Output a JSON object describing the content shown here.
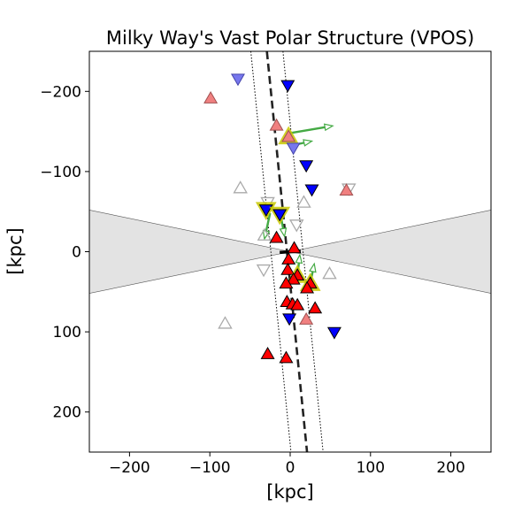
{
  "chart_data": {
    "type": "scatter",
    "title": "Milky Way's Vast Polar Structure (VPOS)",
    "xlabel": "[kpc]",
    "ylabel": "[kpc]",
    "xlim": [
      -250,
      250
    ],
    "ylim": [
      -250,
      250
    ],
    "y_inverted": true,
    "grid": false,
    "x_ticks": [
      -200,
      -100,
      0,
      100,
      200
    ],
    "y_ticks": [
      -200,
      -100,
      0,
      100,
      200
    ],
    "x_tick_labels": [
      "−200",
      "−100",
      "0",
      "100",
      "200"
    ],
    "y_tick_labels": [
      "−200",
      "−100",
      "0",
      "100",
      "200"
    ],
    "colors": {
      "co_orbiting": "#ff0000",
      "counter_orbiting": "#0000ff",
      "faded_co": "#f08080",
      "faded_counter": "#7777ee",
      "unconstrained": "#aaaaaa",
      "velocity_arrow": "#44aa44",
      "highlight_outline": "#c8c800",
      "obscured_region": "#e3e3e3",
      "plane_line": "#222222"
    },
    "zone_of_avoidance": {
      "left_edge_y": [
        -52,
        52
      ],
      "right_edge_y": [
        -52,
        52
      ],
      "center": [
        0,
        0
      ]
    },
    "vpos_plane": {
      "center_line": [
        [
          -29,
          -250
        ],
        [
          21,
          250
        ]
      ],
      "boundary_left": [
        [
          -49,
          -250
        ],
        [
          1,
          250
        ]
      ],
      "boundary_right": [
        [
          -9,
          -250
        ],
        [
          41,
          250
        ]
      ],
      "center_bar": [
        [
          -13,
          1
        ],
        [
          13,
          -1
        ]
      ]
    },
    "markers": [
      {
        "x": -65,
        "y": -216,
        "shape": "down",
        "kind": "faded_counter"
      },
      {
        "x": -3,
        "y": -208,
        "shape": "down",
        "kind": "counter_orbiting"
      },
      {
        "x": -99,
        "y": -191,
        "shape": "up",
        "kind": "faded_co"
      },
      {
        "x": -17,
        "y": -157,
        "shape": "up",
        "kind": "faded_co"
      },
      {
        "x": -2,
        "y": -143,
        "shape": "up",
        "kind": "faded_co",
        "highlight": true
      },
      {
        "x": 4,
        "y": -130,
        "shape": "down",
        "kind": "faded_counter"
      },
      {
        "x": 20,
        "y": -108,
        "shape": "down",
        "kind": "counter_orbiting"
      },
      {
        "x": 27,
        "y": -78,
        "shape": "down",
        "kind": "counter_orbiting"
      },
      {
        "x": 70,
        "y": -76,
        "shape": "up",
        "kind": "faded_co"
      },
      {
        "x": 73,
        "y": -79,
        "shape": "down",
        "kind": "unconstrained"
      },
      {
        "x": -62,
        "y": -79,
        "shape": "up",
        "kind": "unconstrained"
      },
      {
        "x": -28,
        "y": -62,
        "shape": "down",
        "kind": "unconstrained"
      },
      {
        "x": 17,
        "y": -61,
        "shape": "up",
        "kind": "unconstrained"
      },
      {
        "x": -30,
        "y": -53,
        "shape": "down",
        "kind": "counter_orbiting",
        "highlight": true
      },
      {
        "x": -13,
        "y": -47,
        "shape": "down",
        "kind": "counter_orbiting",
        "highlight": true
      },
      {
        "x": 8,
        "y": -34,
        "shape": "down",
        "kind": "unconstrained"
      },
      {
        "x": -32,
        "y": -20,
        "shape": "up",
        "kind": "unconstrained"
      },
      {
        "x": -17,
        "y": -17,
        "shape": "up",
        "kind": "co_orbiting"
      },
      {
        "x": 5,
        "y": -4,
        "shape": "up",
        "kind": "co_orbiting"
      },
      {
        "x": -2,
        "y": 10,
        "shape": "up",
        "kind": "co_orbiting"
      },
      {
        "x": -33,
        "y": 22,
        "shape": "down",
        "kind": "unconstrained"
      },
      {
        "x": -3,
        "y": 23,
        "shape": "up",
        "kind": "co_orbiting"
      },
      {
        "x": 9,
        "y": 30,
        "shape": "up",
        "kind": "co_orbiting",
        "highlight": true
      },
      {
        "x": 4,
        "y": 35,
        "shape": "up",
        "kind": "co_orbiting"
      },
      {
        "x": 25,
        "y": 40,
        "shape": "up",
        "kind": "co_orbiting",
        "highlight": true
      },
      {
        "x": 49,
        "y": 28,
        "shape": "up",
        "kind": "unconstrained"
      },
      {
        "x": -5,
        "y": 40,
        "shape": "up",
        "kind": "co_orbiting"
      },
      {
        "x": 21,
        "y": 46,
        "shape": "up",
        "kind": "co_orbiting"
      },
      {
        "x": -4,
        "y": 63,
        "shape": "up",
        "kind": "co_orbiting"
      },
      {
        "x": 3,
        "y": 66,
        "shape": "up",
        "kind": "co_orbiting"
      },
      {
        "x": 9,
        "y": 67,
        "shape": "up",
        "kind": "co_orbiting"
      },
      {
        "x": 31,
        "y": 71,
        "shape": "up",
        "kind": "co_orbiting"
      },
      {
        "x": -1,
        "y": 83,
        "shape": "down",
        "kind": "counter_orbiting"
      },
      {
        "x": 20,
        "y": 85,
        "shape": "up",
        "kind": "faded_co"
      },
      {
        "x": -81,
        "y": 90,
        "shape": "up",
        "kind": "unconstrained"
      },
      {
        "x": 55,
        "y": 100,
        "shape": "down",
        "kind": "counter_orbiting"
      },
      {
        "x": -28,
        "y": 128,
        "shape": "up",
        "kind": "co_orbiting"
      },
      {
        "x": -5,
        "y": 133,
        "shape": "up",
        "kind": "co_orbiting"
      }
    ],
    "velocity_arrows": [
      {
        "from": [
          0,
          -148
        ],
        "to": [
          53,
          -157
        ]
      },
      {
        "from": [
          4,
          -133
        ],
        "to": [
          27,
          -138
        ]
      },
      {
        "from": [
          -25,
          -48
        ],
        "to": [
          -32,
          -16
        ]
      },
      {
        "from": [
          -11,
          -41
        ],
        "to": [
          -7,
          -19
        ]
      },
      {
        "from": [
          9,
          30
        ],
        "to": [
          12,
          4
        ]
      },
      {
        "from": [
          25,
          40
        ],
        "to": [
          30,
          15
        ]
      }
    ]
  }
}
